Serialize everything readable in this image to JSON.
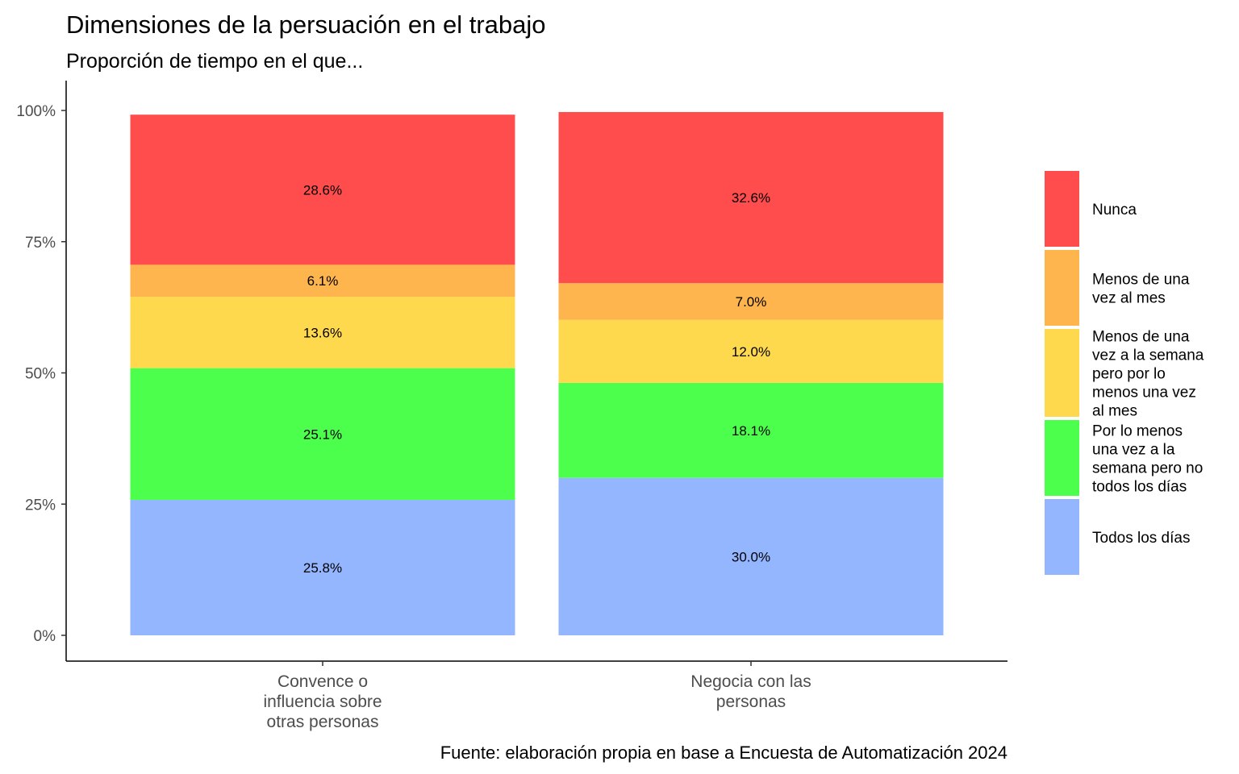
{
  "chart_data": {
    "type": "bar",
    "stacked": true,
    "title": "Dimensiones de la persuación en el trabajo",
    "subtitle": "Proporción de tiempo en el que...",
    "caption": "Fuente: elaboración propia en base a Encuesta de Automatización 2024",
    "xlabel": "",
    "ylabel": "",
    "ylim": [
      0,
      100
    ],
    "y_ticks": [
      0,
      25,
      50,
      75,
      100
    ],
    "y_tick_labels": [
      "0%",
      "25%",
      "50%",
      "75%",
      "100%"
    ],
    "grid": false,
    "legend_position": "right",
    "categories": [
      [
        "Convence o",
        "influencia sobre",
        "otras personas"
      ],
      [
        "Negocia con las",
        "personas"
      ]
    ],
    "series": [
      {
        "name": "Todos los días",
        "legend_lines": [
          "Todos los días"
        ],
        "color": "#94B6FF",
        "values": [
          25.8,
          30.0
        ],
        "labels": [
          "25.8%",
          "30.0%"
        ]
      },
      {
        "name": "Por lo menos una vez a la semana pero no todos los días",
        "legend_lines": [
          "Por lo menos",
          "una vez a la",
          "semana pero no",
          "todos los días"
        ],
        "color": "#4DFF4D",
        "values": [
          25.1,
          18.1
        ],
        "labels": [
          "25.1%",
          "18.1%"
        ]
      },
      {
        "name": "Menos de una vez a la semana pero por lo menos una vez al mes",
        "legend_lines": [
          "Menos de una",
          "vez a la semana",
          "pero por lo",
          "menos una vez",
          "al mes"
        ],
        "color": "#FFD94D",
        "values": [
          13.6,
          12.0
        ],
        "labels": [
          "13.6%",
          "12.0%"
        ]
      },
      {
        "name": "Menos de una vez al mes",
        "legend_lines": [
          "Menos de una",
          "vez al mes"
        ],
        "color": "#FFB54D",
        "values": [
          6.1,
          7.0
        ],
        "labels": [
          "6.1%",
          "7.0%"
        ]
      },
      {
        "name": "Nunca",
        "legend_lines": [
          "Nunca"
        ],
        "color": "#FF4D4D",
        "values": [
          28.6,
          32.6
        ],
        "labels": [
          "28.6%",
          "32.6%"
        ]
      }
    ],
    "legend_order": [
      "Nunca",
      "Menos de una vez al mes",
      "Menos de una vez a la semana pero por lo menos una vez al mes",
      "Por lo menos una vez a la semana pero no todos los días",
      "Todos los días"
    ]
  }
}
